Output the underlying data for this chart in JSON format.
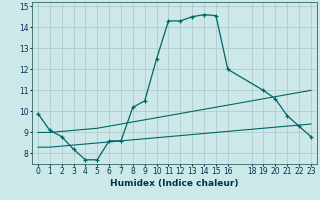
{
  "xlabel": "Humidex (Indice chaleur)",
  "background_color": "#cce8e8",
  "grid_color": "#b0cccc",
  "line_color": "#006666",
  "xlim": [
    -0.5,
    23.5
  ],
  "ylim": [
    7.5,
    15.2
  ],
  "xticks": [
    0,
    1,
    2,
    3,
    4,
    5,
    6,
    7,
    8,
    9,
    10,
    11,
    12,
    13,
    14,
    15,
    16,
    18,
    19,
    20,
    21,
    22,
    23
  ],
  "yticks": [
    8,
    9,
    10,
    11,
    12,
    13,
    14,
    15
  ],
  "line1_x": [
    0,
    1,
    2,
    3,
    4,
    5,
    6,
    7,
    8,
    9,
    10,
    11,
    12,
    13,
    14,
    15,
    16,
    19,
    20,
    21,
    22,
    23
  ],
  "line1_y": [
    9.9,
    9.1,
    8.8,
    8.2,
    7.7,
    7.7,
    8.6,
    8.6,
    10.2,
    10.5,
    12.5,
    14.3,
    14.3,
    14.5,
    14.6,
    14.55,
    12.0,
    11.0,
    10.6,
    9.8,
    9.3,
    8.8
  ],
  "line2_x": [
    0,
    1,
    2,
    3,
    4,
    5,
    6,
    7,
    8,
    9,
    10,
    11,
    12,
    13,
    14,
    15,
    16,
    17,
    18,
    19,
    20,
    21,
    22,
    23
  ],
  "line2_y": [
    9.0,
    9.0,
    9.05,
    9.1,
    9.15,
    9.2,
    9.3,
    9.4,
    9.5,
    9.6,
    9.7,
    9.8,
    9.9,
    10.0,
    10.1,
    10.2,
    10.3,
    10.4,
    10.5,
    10.6,
    10.7,
    10.8,
    10.9,
    11.0
  ],
  "line3_x": [
    0,
    1,
    2,
    3,
    4,
    5,
    6,
    7,
    8,
    9,
    10,
    11,
    12,
    13,
    14,
    15,
    16,
    17,
    18,
    19,
    20,
    21,
    22,
    23
  ],
  "line3_y": [
    8.3,
    8.3,
    8.35,
    8.4,
    8.45,
    8.5,
    8.55,
    8.6,
    8.65,
    8.7,
    8.75,
    8.8,
    8.85,
    8.9,
    8.95,
    9.0,
    9.05,
    9.1,
    9.15,
    9.2,
    9.25,
    9.3,
    9.35,
    9.4
  ]
}
